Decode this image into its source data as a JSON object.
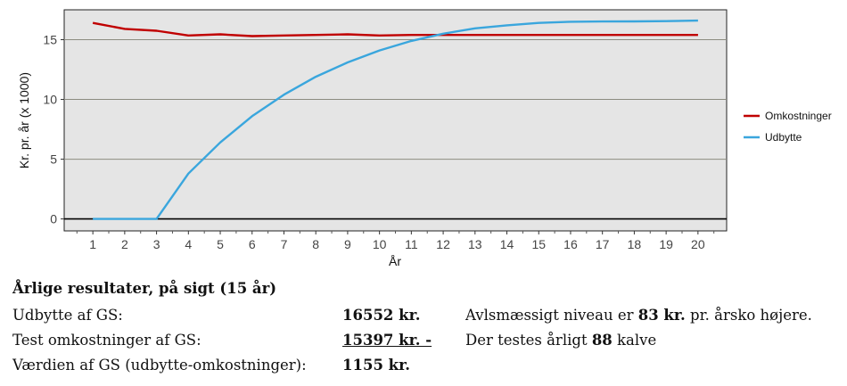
{
  "chart_data": {
    "type": "line",
    "xlabel": "År",
    "ylabel": "Kr. pr. år (x 1000)",
    "x": [
      1,
      2,
      3,
      4,
      5,
      6,
      7,
      8,
      9,
      10,
      11,
      12,
      13,
      14,
      15,
      16,
      17,
      18,
      19,
      20
    ],
    "x_ticks": [
      1,
      2,
      3,
      4,
      5,
      6,
      7,
      8,
      9,
      10,
      11,
      12,
      13,
      14,
      15,
      16,
      17,
      18,
      19,
      20
    ],
    "y_ticks": [
      0,
      5,
      10,
      15
    ],
    "xlim": [
      0.1,
      20.9
    ],
    "ylim": [
      -1,
      17.5
    ],
    "grid": true,
    "legend_position": "right",
    "series": [
      {
        "name": "Omkostninger",
        "color": "#c00000",
        "values": [
          16.4,
          15.9,
          15.75,
          15.35,
          15.45,
          15.3,
          15.35,
          15.4,
          15.45,
          15.35,
          15.4,
          15.4,
          15.4,
          15.4,
          15.4,
          15.4,
          15.4,
          15.4,
          15.4,
          15.4
        ]
      },
      {
        "name": "Udbytte",
        "color": "#3aa6dd",
        "values": [
          0,
          0,
          0,
          3.8,
          6.4,
          8.6,
          10.4,
          11.9,
          13.1,
          14.1,
          14.9,
          15.5,
          15.95,
          16.2,
          16.4,
          16.5,
          16.52,
          16.53,
          16.55,
          16.6
        ]
      }
    ]
  },
  "results": {
    "heading": "Årlige resultater, på sigt (15 år)",
    "rows": [
      {
        "label": "Udbytte af GS:",
        "value": "16552 kr.",
        "note_prefix": "Avlsmæssigt niveau er ",
        "note_bold": "83 kr.",
        "note_suffix": " pr. årsko højere."
      },
      {
        "label": "Test omkostninger af GS:",
        "value": "15397 kr. -",
        "note_prefix": "Der testes årligt ",
        "note_bold": "88",
        "note_suffix": " kalve"
      },
      {
        "label": "Værdien af GS (udbytte-omkostninger):",
        "value": "1155 kr."
      }
    ]
  }
}
